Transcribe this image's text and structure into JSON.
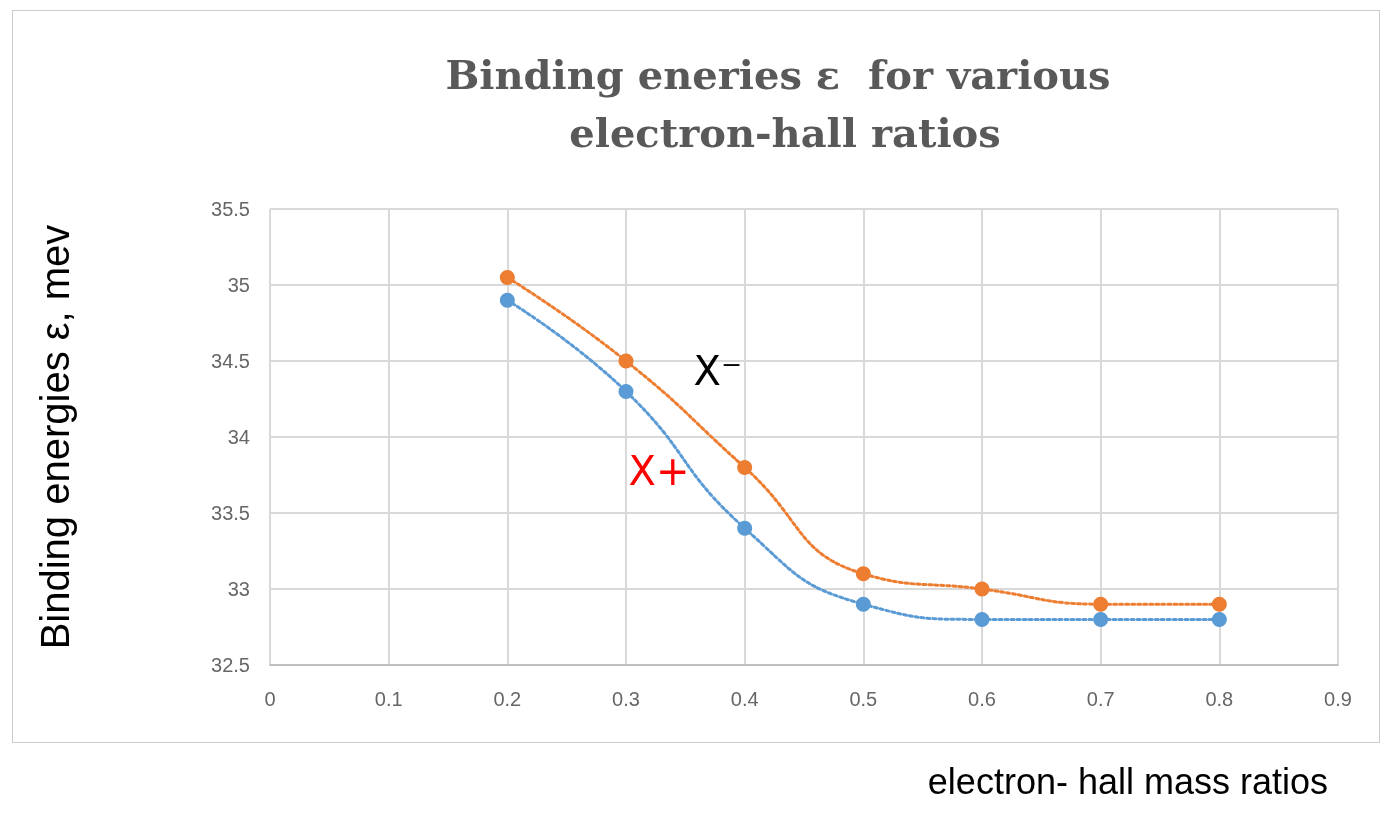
{
  "chart_data": {
    "type": "line",
    "title": "Binding eneries ε  for various electron-hall ratios",
    "xlabel": "electron- hall mass ratios",
    "ylabel": "Binding energies ε, mev",
    "x": [
      0.2,
      0.3,
      0.4,
      0.5,
      0.6,
      0.7,
      0.8
    ],
    "series": [
      {
        "name": "X⁻",
        "color": "#ed7d31",
        "values": [
          35.05,
          34.5,
          33.8,
          33.1,
          33.0,
          32.9,
          32.9
        ]
      },
      {
        "name": "X+",
        "color": "#5b9bd5",
        "values": [
          34.9,
          34.3,
          33.4,
          32.9,
          32.8,
          32.8,
          32.8
        ]
      }
    ],
    "xlim": [
      0,
      0.9
    ],
    "xticks": [
      0,
      0.1,
      0.2,
      0.3,
      0.4,
      0.5,
      0.6,
      0.7,
      0.8,
      0.9
    ],
    "ylim": [
      32.5,
      35.5
    ],
    "yticks": [
      32.5,
      33,
      33.5,
      34,
      34.5,
      35,
      35.5
    ],
    "grid": true,
    "marker": "circle",
    "line_style": "dotted",
    "legend": false
  }
}
